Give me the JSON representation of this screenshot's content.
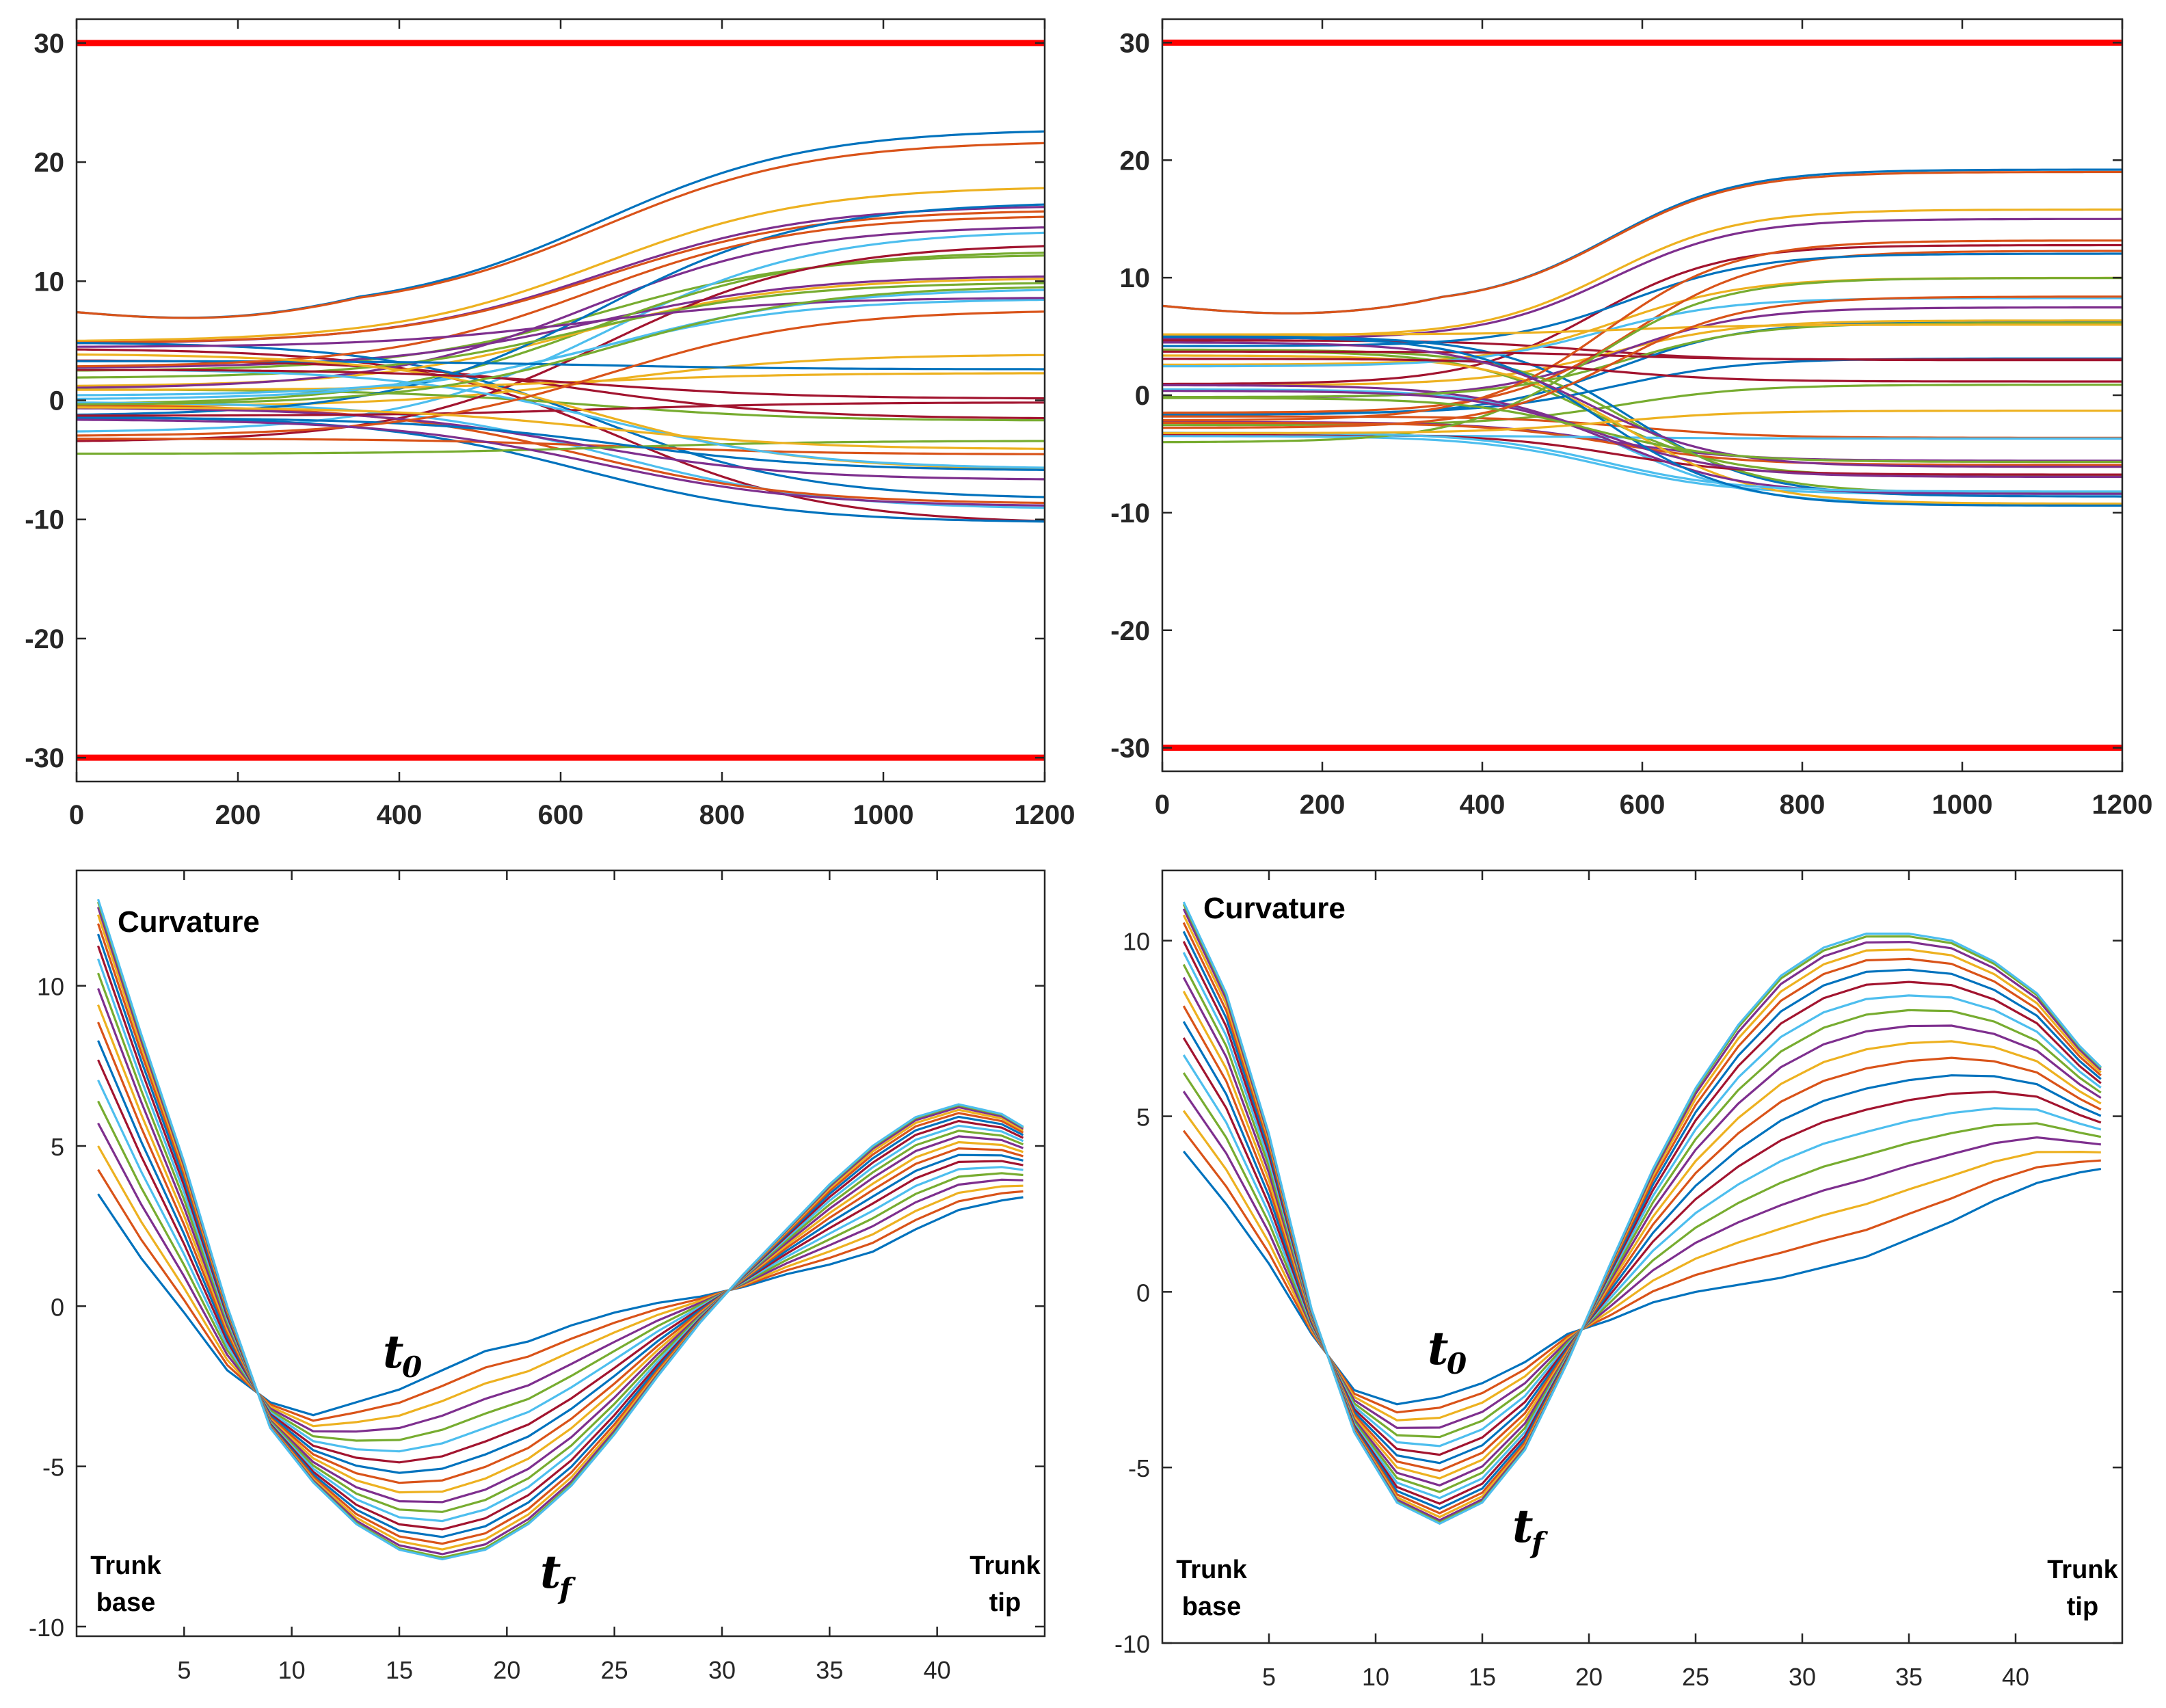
{
  "chart_data": [
    {
      "id": "top-left",
      "type": "line",
      "xlim": [
        0,
        1200
      ],
      "ylim": [
        -32,
        32
      ],
      "xticks": [
        "0",
        "200",
        "400",
        "600",
        "800",
        "1000",
        "1200"
      ],
      "yticks": [
        "30",
        "20",
        "10",
        "0",
        "-10",
        "-20",
        "-30"
      ],
      "bounds": [
        30,
        -30
      ],
      "bound_color": "#ff0000",
      "series": {
        "count": 40,
        "generator": "sigmoid",
        "t_mid": 650,
        "t_width": 130,
        "start_min": -5.0,
        "start_max": 7.4,
        "end_min": -11.8,
        "end_max": 22.8,
        "seed": 7,
        "notable": [
          {
            "start": 7.4,
            "end": 22.8
          },
          {
            "start": 7.4,
            "end": 21.8
          },
          {
            "start": 5.0,
            "end": 18.0
          },
          {
            "start": 4.8,
            "end": 16.4
          },
          {
            "start": 2.5,
            "end": 12.3
          }
        ]
      }
    },
    {
      "id": "top-right",
      "type": "line",
      "xlim": [
        0,
        1200
      ],
      "ylim": [
        -32,
        32
      ],
      "xticks": [
        "0",
        "200",
        "400",
        "600",
        "800",
        "1000",
        "1200"
      ],
      "yticks": [
        "30",
        "20",
        "10",
        "0",
        "-10",
        "-20",
        "-30"
      ],
      "bounds": [
        30,
        -30
      ],
      "bound_color": "#ff0000",
      "series": {
        "count": 40,
        "generator": "sigmoid",
        "t_mid": 560,
        "t_width": 80,
        "start_min": -5.0,
        "start_max": 7.6,
        "end_min": -9.5,
        "end_max": 19.2,
        "seed": 13,
        "notable": [
          {
            "start": 7.6,
            "end": 19.2
          },
          {
            "start": 7.6,
            "end": 19.0
          },
          {
            "start": 5.0,
            "end": 15.8
          },
          {
            "start": 4.8,
            "end": 15.0
          }
        ]
      }
    },
    {
      "id": "bottom-left",
      "type": "line",
      "title": "Curvature",
      "xlim": [
        0,
        45
      ],
      "ylim": [
        -10.3,
        13.6
      ],
      "xticks": [
        "5",
        "10",
        "15",
        "20",
        "25",
        "30",
        "35",
        "40"
      ],
      "yticks": [
        "10",
        "5",
        "0",
        "-5",
        "-10"
      ],
      "annotations": {
        "t0": "t",
        "t0_sub": "0",
        "tf": "t",
        "tf_sub": "f",
        "left": [
          "Trunk",
          "base"
        ],
        "right": [
          "Trunk",
          "tip"
        ]
      },
      "series": {
        "count": 20,
        "x_min": 1,
        "x_max": 44,
        "profile_t0": [
          [
            1,
            3.5
          ],
          [
            3,
            1.5
          ],
          [
            5,
            -0.2
          ],
          [
            7,
            -2.0
          ],
          [
            9,
            -3.0
          ],
          [
            11,
            -3.4
          ],
          [
            13,
            -3.0
          ],
          [
            15,
            -2.6
          ],
          [
            17,
            -2.0
          ],
          [
            19,
            -1.4
          ],
          [
            21,
            -1.1
          ],
          [
            23,
            -0.6
          ],
          [
            25,
            -0.2
          ],
          [
            27,
            0.1
          ],
          [
            29,
            0.3
          ],
          [
            31,
            0.6
          ],
          [
            33,
            1.0
          ],
          [
            35,
            1.3
          ],
          [
            37,
            1.7
          ],
          [
            39,
            2.4
          ],
          [
            41,
            3.0
          ],
          [
            43,
            3.3
          ],
          [
            44,
            3.4
          ]
        ],
        "profile_tf": [
          [
            1,
            12.7
          ],
          [
            3,
            8.5
          ],
          [
            5,
            4.5
          ],
          [
            7,
            0.0
          ],
          [
            9,
            -3.8
          ],
          [
            11,
            -5.5
          ],
          [
            13,
            -6.8
          ],
          [
            15,
            -7.6
          ],
          [
            17,
            -7.9
          ],
          [
            19,
            -7.6
          ],
          [
            21,
            -6.8
          ],
          [
            23,
            -5.6
          ],
          [
            25,
            -4.0
          ],
          [
            27,
            -2.2
          ],
          [
            29,
            -0.5
          ],
          [
            31,
            1.0
          ],
          [
            33,
            2.4
          ],
          [
            35,
            3.8
          ],
          [
            37,
            5.0
          ],
          [
            39,
            5.9
          ],
          [
            41,
            6.3
          ],
          [
            43,
            6.0
          ],
          [
            44,
            5.6
          ]
        ]
      }
    },
    {
      "id": "bottom-right",
      "type": "line",
      "title": "Curvature",
      "xlim": [
        0,
        45
      ],
      "ylim": [
        -10,
        12
      ],
      "xticks": [
        "5",
        "10",
        "15",
        "20",
        "25",
        "30",
        "35",
        "40"
      ],
      "yticks": [
        "10",
        "5",
        "0",
        "-5",
        "-10"
      ],
      "annotations": {
        "t0": "t",
        "t0_sub": "0",
        "tf": "t",
        "tf_sub": "f",
        "left": [
          "Trunk",
          "base"
        ],
        "right": [
          "Trunk",
          "tip"
        ]
      },
      "series": {
        "count": 20,
        "x_min": 1,
        "x_max": 44,
        "profile_t0": [
          [
            1,
            4.0
          ],
          [
            3,
            2.5
          ],
          [
            5,
            0.8
          ],
          [
            7,
            -1.2
          ],
          [
            9,
            -2.8
          ],
          [
            11,
            -3.2
          ],
          [
            13,
            -3.0
          ],
          [
            15,
            -2.6
          ],
          [
            17,
            -2.0
          ],
          [
            19,
            -1.2
          ],
          [
            21,
            -0.8
          ],
          [
            23,
            -0.3
          ],
          [
            25,
            0.0
          ],
          [
            27,
            0.2
          ],
          [
            29,
            0.4
          ],
          [
            31,
            0.7
          ],
          [
            33,
            1.0
          ],
          [
            35,
            1.5
          ],
          [
            37,
            2.0
          ],
          [
            39,
            2.6
          ],
          [
            41,
            3.1
          ],
          [
            43,
            3.4
          ],
          [
            44,
            3.5
          ]
        ],
        "profile_tf": [
          [
            1,
            11.1
          ],
          [
            3,
            8.5
          ],
          [
            5,
            4.5
          ],
          [
            7,
            -0.5
          ],
          [
            9,
            -4.0
          ],
          [
            11,
            -6.0
          ],
          [
            13,
            -6.6
          ],
          [
            15,
            -6.0
          ],
          [
            17,
            -4.5
          ],
          [
            19,
            -2.0
          ],
          [
            21,
            0.8
          ],
          [
            23,
            3.5
          ],
          [
            25,
            5.8
          ],
          [
            27,
            7.6
          ],
          [
            29,
            9.0
          ],
          [
            31,
            9.8
          ],
          [
            33,
            10.2
          ],
          [
            35,
            10.2
          ],
          [
            37,
            10.0
          ],
          [
            39,
            9.4
          ],
          [
            41,
            8.5
          ],
          [
            43,
            7.0
          ],
          [
            44,
            6.4
          ]
        ]
      }
    }
  ]
}
